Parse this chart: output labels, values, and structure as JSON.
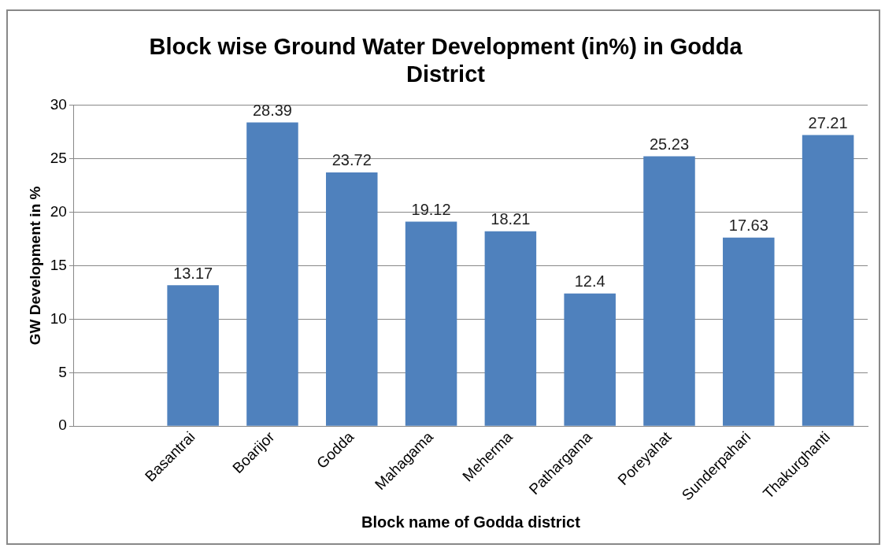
{
  "chart_data": {
    "type": "bar",
    "title": "Block wise Ground Water Development (in%) in Godda District",
    "xlabel": "Block name of Godda district",
    "ylabel": "GW Development in %",
    "categories": [
      null,
      "Basantrai",
      "Boarijor",
      "Godda",
      "Mahagama",
      "Meherma",
      "Pathargama",
      "Poreyahat",
      "Sunderpahari",
      "Thakurghanti"
    ],
    "values": [
      null,
      13.17,
      28.39,
      23.72,
      19.12,
      18.21,
      12.4,
      25.23,
      17.63,
      27.21
    ],
    "color": "#4f81bd",
    "ylim": [
      0,
      30
    ],
    "yticks": [
      0,
      5,
      10,
      15,
      20,
      25,
      30
    ],
    "grid": "y",
    "data_labels": true,
    "legend": false
  }
}
